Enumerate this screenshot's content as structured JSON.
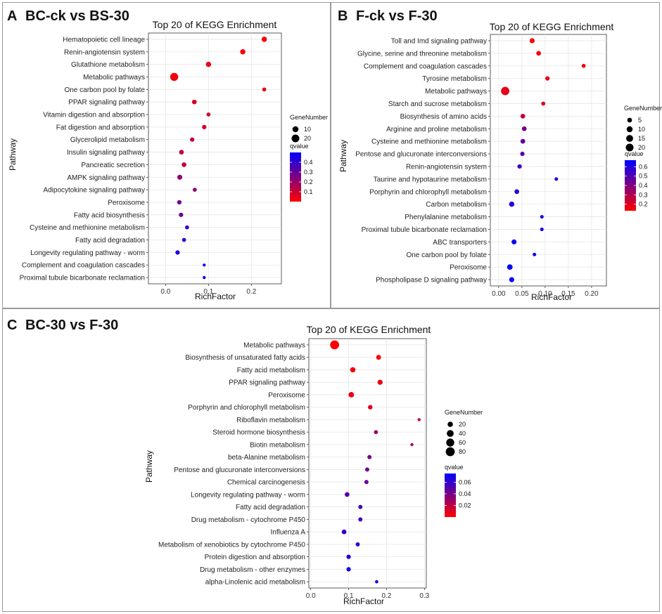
{
  "colors": {
    "low_q": "#ff0000",
    "high_q": "#0000ff",
    "grid": "#e6e6e6",
    "panel_bg": "#ebebeb"
  },
  "chart_data": [
    {
      "type": "scatter",
      "panel_letter": "A",
      "panel_title": "BC-ck vs BS-30",
      "title": "Top 20 of KEGG Enrichment",
      "xlabel": "RichFactor",
      "ylabel": "Pathway",
      "xlim": [
        -0.04,
        0.27
      ],
      "xticks": [
        0.0,
        0.1,
        0.2
      ],
      "xtick_labels": [
        "0.0",
        "0.1",
        "0.2"
      ],
      "size_legend_title": "GeneNumber",
      "size_legend_values": [
        10,
        20
      ],
      "size_legend_labels": [
        "10",
        "20"
      ],
      "color_legend_title": "qvalue",
      "color_legend_ticks": [
        0.1,
        0.2,
        0.3,
        0.4
      ],
      "color_legend_labels": [
        "0.1",
        "0.2",
        "0.3",
        "0.4"
      ],
      "qrange": [
        0.0,
        0.5
      ],
      "pathways": [
        {
          "name": "Hematopoietic cell lineage",
          "rich": 0.23,
          "genes": 7,
          "q": 0.02
        },
        {
          "name": "Renin-angiotensin system",
          "rich": 0.18,
          "genes": 7,
          "q": 0.02
        },
        {
          "name": "Glutathione metabolism",
          "rich": 0.1,
          "genes": 7,
          "q": 0.03
        },
        {
          "name": "Metabolic pathways",
          "rich": 0.02,
          "genes": 22,
          "q": 0.03
        },
        {
          "name": "One carbon pool by folate",
          "rich": 0.23,
          "genes": 3,
          "q": 0.05
        },
        {
          "name": "PPAR signaling pathway",
          "rich": 0.067,
          "genes": 5,
          "q": 0.08
        },
        {
          "name": "Vitamin digestion and absorption",
          "rich": 0.1,
          "genes": 3,
          "q": 0.08
        },
        {
          "name": "Fat digestion and absorption",
          "rich": 0.09,
          "genes": 4,
          "q": 0.08
        },
        {
          "name": "Glycerolipid metabolism",
          "rich": 0.062,
          "genes": 4,
          "q": 0.12
        },
        {
          "name": "Insulin signaling pathway",
          "rich": 0.037,
          "genes": 5,
          "q": 0.12
        },
        {
          "name": "Pancreatic secretion",
          "rich": 0.043,
          "genes": 5,
          "q": 0.12
        },
        {
          "name": "AMPK signaling pathway",
          "rich": 0.033,
          "genes": 6,
          "q": 0.22
        },
        {
          "name": "Adipocytokine signaling pathway",
          "rich": 0.068,
          "genes": 3,
          "q": 0.22
        },
        {
          "name": "Peroxisome",
          "rich": 0.032,
          "genes": 4,
          "q": 0.28
        },
        {
          "name": "Fatty acid biosynthesis",
          "rich": 0.036,
          "genes": 4,
          "q": 0.3
        },
        {
          "name": "Cysteine and methionine metabolism",
          "rich": 0.05,
          "genes": 3,
          "q": 0.38
        },
        {
          "name": "Fatty acid degradation",
          "rich": 0.043,
          "genes": 3,
          "q": 0.4
        },
        {
          "name": "Longevity regulating pathway - worm",
          "rich": 0.028,
          "genes": 4,
          "q": 0.44
        },
        {
          "name": "Complement and coagulation cascades",
          "rich": 0.09,
          "genes": 1,
          "q": 0.47
        },
        {
          "name": "Proximal tubule bicarbonate reclamation",
          "rich": 0.09,
          "genes": 1,
          "q": 0.48
        }
      ]
    },
    {
      "type": "scatter",
      "panel_letter": "B",
      "panel_title": "F-ck vs F-30",
      "title": "Top 20 of KEGG Enrichment",
      "xlabel": "RichFactor",
      "ylabel": "Pathway",
      "xlim": [
        -0.018,
        0.232
      ],
      "xticks": [
        0.0,
        0.05,
        0.1,
        0.15,
        0.2
      ],
      "xtick_labels": [
        "0.00",
        "0.05",
        "0.10",
        "0.15",
        "0.20"
      ],
      "size_legend_title": "GeneNumber",
      "size_legend_values": [
        5,
        10,
        15,
        20
      ],
      "size_legend_labels": [
        "5",
        "10",
        "15",
        "20"
      ],
      "color_legend_title": "qvalue",
      "color_legend_ticks": [
        0.2,
        0.3,
        0.4,
        0.5,
        0.6
      ],
      "color_legend_labels": [
        "0.2",
        "0.3",
        "0.4",
        "0.5",
        "0.6"
      ],
      "qrange": [
        0.13,
        0.67
      ],
      "pathways": [
        {
          "name": "Toll and Imd signaling pathway",
          "rich": 0.072,
          "genes": 6,
          "q": 0.15
        },
        {
          "name": "Glycine, serine and threonine metabolism",
          "rich": 0.086,
          "genes": 5,
          "q": 0.15
        },
        {
          "name": "Complement and coagulation cascades",
          "rich": 0.183,
          "genes": 3,
          "q": 0.16
        },
        {
          "name": "Tyrosine metabolism",
          "rich": 0.105,
          "genes": 4,
          "q": 0.17
        },
        {
          "name": "Metabolic pathways",
          "rich": 0.014,
          "genes": 24,
          "q": 0.18
        },
        {
          "name": "Starch and sucrose metabolism",
          "rich": 0.096,
          "genes": 3,
          "q": 0.2
        },
        {
          "name": "Biosynthesis of amino acids",
          "rich": 0.052,
          "genes": 5,
          "q": 0.26
        },
        {
          "name": "Arginine and proline metabolism",
          "rich": 0.055,
          "genes": 5,
          "q": 0.42
        },
        {
          "name": "Cysteine and methionine metabolism",
          "rich": 0.052,
          "genes": 5,
          "q": 0.46
        },
        {
          "name": "Pentose and glucuronate interconversions",
          "rich": 0.051,
          "genes": 4,
          "q": 0.48
        },
        {
          "name": "Renin-angiotensin system",
          "rich": 0.045,
          "genes": 4,
          "q": 0.54
        },
        {
          "name": "Taurine and hypotaurine metabolism",
          "rich": 0.124,
          "genes": 2,
          "q": 0.56
        },
        {
          "name": "Porphyrin and chlorophyll metabolism",
          "rich": 0.039,
          "genes": 5,
          "q": 0.58
        },
        {
          "name": "Carbon metabolism",
          "rich": 0.028,
          "genes": 7,
          "q": 0.6
        },
        {
          "name": "Phenylalanine metabolism",
          "rich": 0.093,
          "genes": 2,
          "q": 0.62
        },
        {
          "name": "Proximal tubule bicarbonate reclamation",
          "rich": 0.093,
          "genes": 2,
          "q": 0.63
        },
        {
          "name": "ABC transporters",
          "rich": 0.033,
          "genes": 6,
          "q": 0.64
        },
        {
          "name": "One carbon pool by folate",
          "rich": 0.077,
          "genes": 2,
          "q": 0.64
        },
        {
          "name": "Peroxisome",
          "rich": 0.024,
          "genes": 8,
          "q": 0.65
        },
        {
          "name": "Phospholipase D signaling pathway",
          "rich": 0.028,
          "genes": 6,
          "q": 0.66
        }
      ]
    },
    {
      "type": "scatter",
      "panel_letter": "C",
      "panel_title": "BC-30 vs F-30",
      "title": "Top 20 of KEGG Enrichment",
      "xlabel": "RichFactor",
      "ylabel": "Pathway",
      "xlim": [
        -0.005,
        0.305
      ],
      "xticks": [
        0.0,
        0.1,
        0.2,
        0.3
      ],
      "xtick_labels": [
        "0.0",
        "0.1",
        "0.2",
        "0.3"
      ],
      "size_legend_title": "GeneNumber",
      "size_legend_values": [
        20,
        40,
        60,
        80
      ],
      "size_legend_labels": [
        "20",
        "40",
        "60",
        "80"
      ],
      "color_legend_title": "qvalue",
      "color_legend_ticks": [
        0.02,
        0.04,
        0.06
      ],
      "color_legend_labels": [
        "0.02",
        "0.04",
        "0.06"
      ],
      "qrange": [
        0.0,
        0.075
      ],
      "pathways": [
        {
          "name": "Metabolic pathways",
          "rich": 0.063,
          "genes": 80,
          "q": 0.0
        },
        {
          "name": "Biosynthesis of unsaturated fatty acids",
          "rich": 0.179,
          "genes": 15,
          "q": 0.001
        },
        {
          "name": "Fatty acid metabolism",
          "rich": 0.111,
          "genes": 20,
          "q": 0.003
        },
        {
          "name": "PPAR signaling pathway",
          "rich": 0.183,
          "genes": 18,
          "q": 0.004
        },
        {
          "name": "Peroxisome",
          "rich": 0.107,
          "genes": 22,
          "q": 0.006
        },
        {
          "name": "Porphyrin and chlorophyll metabolism",
          "rich": 0.157,
          "genes": 12,
          "q": 0.01
        },
        {
          "name": "Riboflavin metabolism",
          "rich": 0.286,
          "genes": 3,
          "q": 0.02
        },
        {
          "name": "Steroid hormone biosynthesis",
          "rich": 0.172,
          "genes": 8,
          "q": 0.03
        },
        {
          "name": "Biotin metabolism",
          "rich": 0.267,
          "genes": 3,
          "q": 0.028
        },
        {
          "name": "beta-Alanine metabolism",
          "rich": 0.155,
          "genes": 9,
          "q": 0.04
        },
        {
          "name": "Pentose and glucuronate interconversions",
          "rich": 0.149,
          "genes": 9,
          "q": 0.042
        },
        {
          "name": "Chemical carcinogenesis",
          "rich": 0.147,
          "genes": 9,
          "q": 0.045
        },
        {
          "name": "Longevity regulating pathway - worm",
          "rich": 0.096,
          "genes": 14,
          "q": 0.05
        },
        {
          "name": "Fatty acid degradation",
          "rich": 0.131,
          "genes": 9,
          "q": 0.055
        },
        {
          "name": "Drug metabolism - cytochrome P450",
          "rich": 0.131,
          "genes": 9,
          "q": 0.057
        },
        {
          "name": "Influenza A",
          "rich": 0.088,
          "genes": 14,
          "q": 0.06
        },
        {
          "name": "Metabolism of xenobiotics by cytochrome P450",
          "rich": 0.124,
          "genes": 9,
          "q": 0.063
        },
        {
          "name": "Protein digestion and absorption",
          "rich": 0.1,
          "genes": 11,
          "q": 0.066
        },
        {
          "name": "Drug metabolism - other enzymes",
          "rich": 0.1,
          "genes": 11,
          "q": 0.068
        },
        {
          "name": "alpha-Linolenic acid metabolism",
          "rich": 0.174,
          "genes": 4,
          "q": 0.072
        }
      ]
    }
  ]
}
